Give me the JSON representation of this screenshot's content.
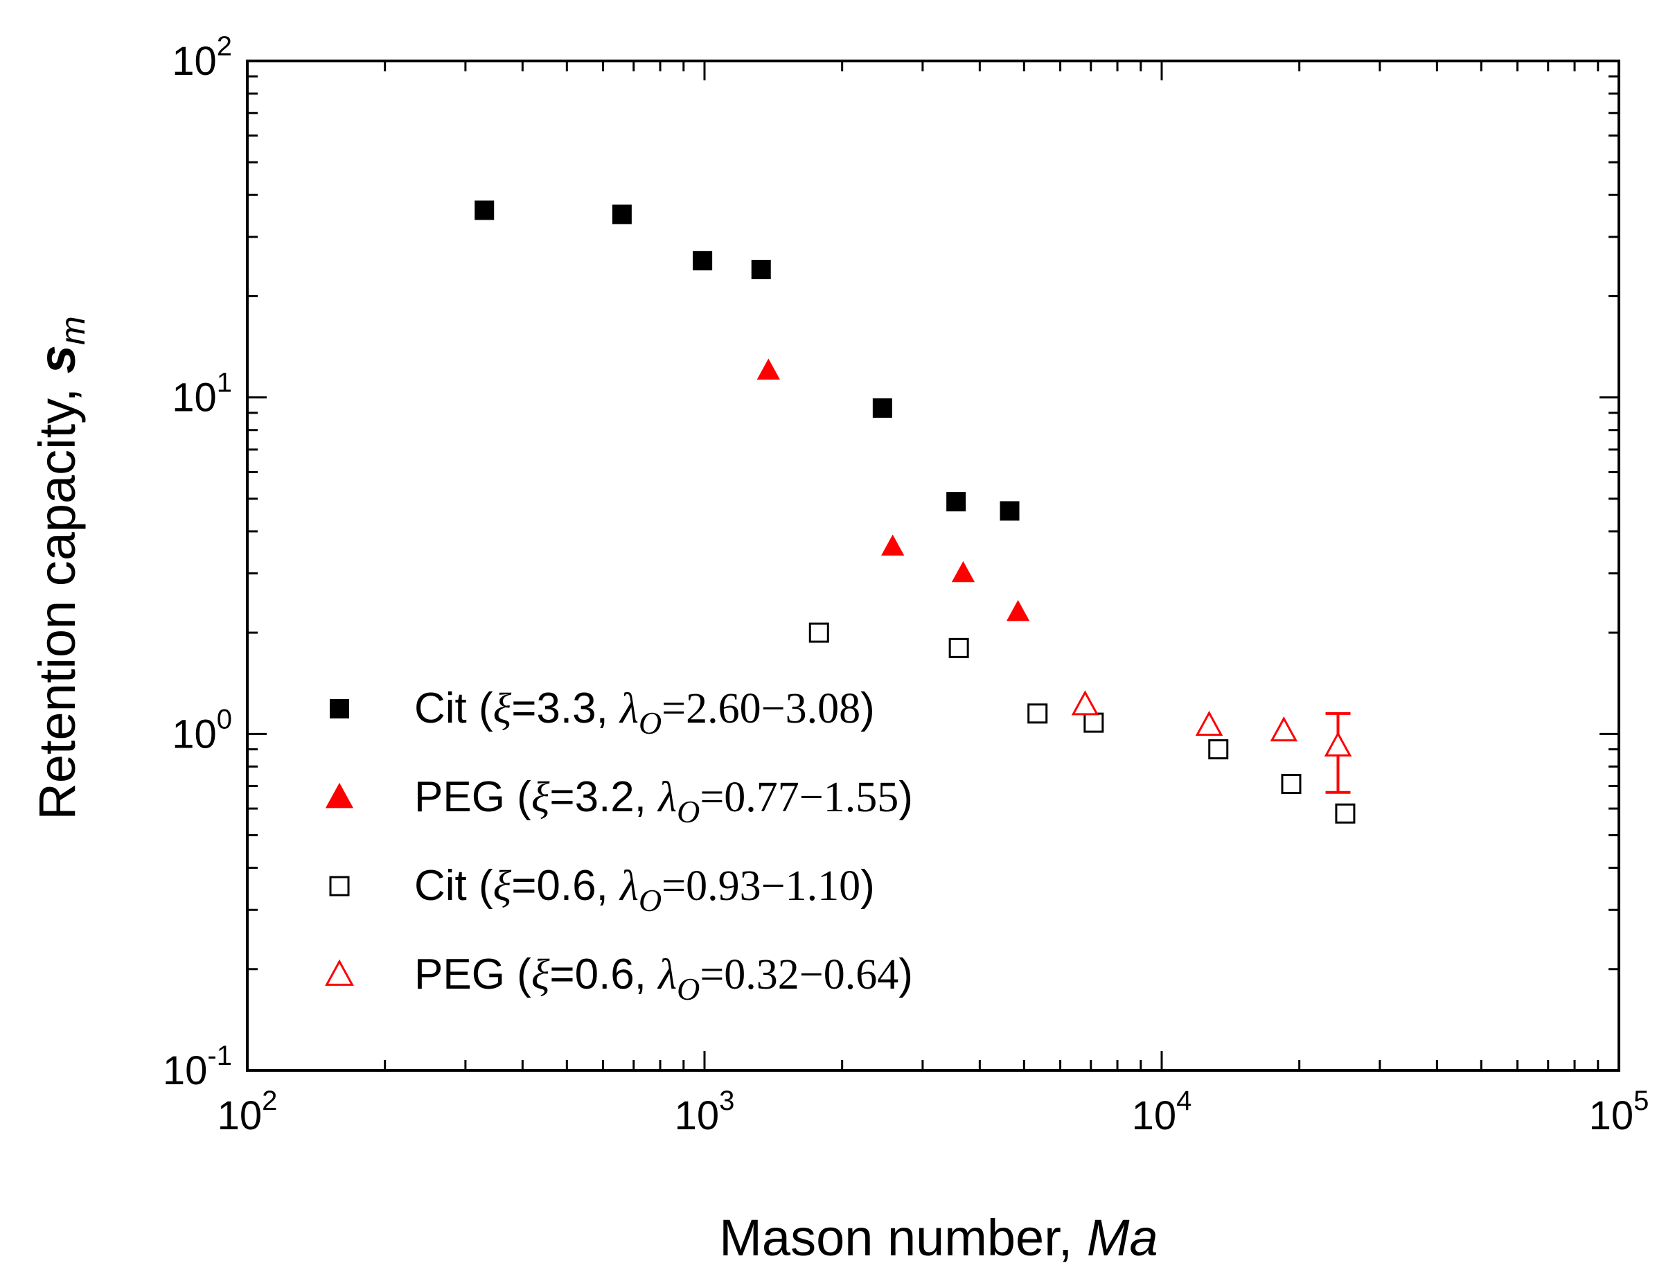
{
  "chart_data": {
    "type": "scatter",
    "xscale": "log",
    "yscale": "log",
    "xlim": [
      100,
      100000
    ],
    "ylim": [
      0.1,
      100
    ],
    "xlabel": "Mason number, ",
    "xlabel_italic": "Ma",
    "ylabel": "Retention capacity, ",
    "ylabel_symbol": "s",
    "ylabel_sub": "m",
    "x_ticks": [
      {
        "value": 100,
        "base": "10",
        "exp": "2"
      },
      {
        "value": 1000,
        "base": "10",
        "exp": "3"
      },
      {
        "value": 10000,
        "base": "10",
        "exp": "4"
      },
      {
        "value": 100000,
        "base": "10",
        "exp": "5"
      }
    ],
    "y_ticks": [
      {
        "value": 0.1,
        "base": "10",
        "exp": "-1"
      },
      {
        "value": 1,
        "base": "10",
        "exp": "0"
      },
      {
        "value": 10,
        "base": "10",
        "exp": "1"
      },
      {
        "value": 100,
        "base": "10",
        "exp": "2"
      }
    ],
    "legend_position": "lower-left",
    "series": [
      {
        "name": "Cit",
        "xi": "3.3",
        "lambda": "2.60−3.08",
        "marker": "square",
        "filled": true,
        "color": "#000000",
        "points": [
          [
            330,
            36
          ],
          [
            660,
            35
          ],
          [
            990,
            25.5
          ],
          [
            1330,
            24
          ],
          [
            2450,
            9.3
          ],
          [
            3550,
            4.9
          ],
          [
            4650,
            4.6
          ]
        ]
      },
      {
        "name": "PEG",
        "xi": "3.2",
        "lambda": "0.77−1.55",
        "marker": "triangle",
        "filled": true,
        "color": "#ff0000",
        "points": [
          [
            1380,
            12
          ],
          [
            2580,
            3.6
          ],
          [
            3680,
            3.0
          ],
          [
            4850,
            2.3
          ]
        ]
      },
      {
        "name": "Cit",
        "xi": "0.6",
        "lambda": "0.93−1.10",
        "marker": "square",
        "filled": false,
        "color": "#000000",
        "points": [
          [
            1780,
            2.0
          ],
          [
            3600,
            1.8
          ],
          [
            5350,
            1.15
          ],
          [
            7100,
            1.08
          ],
          [
            13300,
            0.9
          ],
          [
            19200,
            0.71
          ],
          [
            25200,
            0.58
          ]
        ]
      },
      {
        "name": "PEG",
        "xi": "0.6",
        "lambda": "0.32−0.64",
        "marker": "triangle",
        "filled": false,
        "color": "#ff0000",
        "points": [
          [
            6800,
            1.22
          ],
          [
            12700,
            1.06
          ],
          [
            18500,
            1.02
          ],
          [
            24300,
            0.92
          ]
        ]
      }
    ],
    "error_bars": [
      {
        "x": 24300,
        "low": 0.67,
        "high": 1.15,
        "color": "#ff0000"
      }
    ]
  }
}
